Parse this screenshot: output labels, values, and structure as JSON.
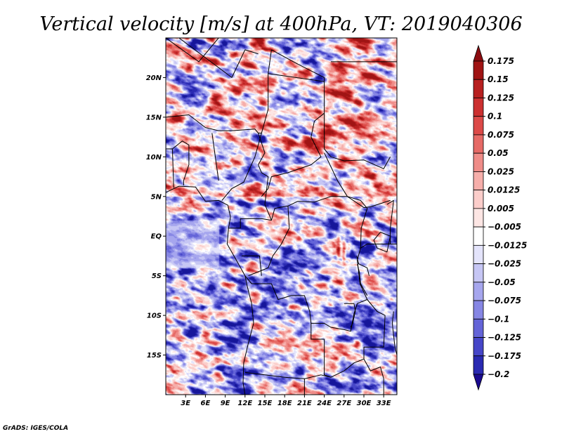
{
  "title": "Vertical velocity [m/s] at 400hPa, VT: 2019040306",
  "credit": "GrADS: IGES/COLA",
  "map": {
    "lon_range": [
      0,
      35
    ],
    "lat_range": [
      -20,
      25
    ],
    "lat_ticks": [
      {
        "value": 20,
        "label": "20N"
      },
      {
        "value": 15,
        "label": "15N"
      },
      {
        "value": 10,
        "label": "10N"
      },
      {
        "value": 5,
        "label": "5N"
      },
      {
        "value": 0,
        "label": "EQ"
      },
      {
        "value": -5,
        "label": "5S"
      },
      {
        "value": -10,
        "label": "10S"
      },
      {
        "value": -15,
        "label": "15S"
      }
    ],
    "lon_ticks": [
      {
        "value": 3,
        "label": "3E"
      },
      {
        "value": 6,
        "label": "6E"
      },
      {
        "value": 9,
        "label": "9E"
      },
      {
        "value": 12,
        "label": "12E"
      },
      {
        "value": 15,
        "label": "15E"
      },
      {
        "value": 18,
        "label": "18E"
      },
      {
        "value": 21,
        "label": "21E"
      },
      {
        "value": 24,
        "label": "24E"
      },
      {
        "value": 27,
        "label": "27E"
      },
      {
        "value": 30,
        "label": "30E"
      },
      {
        "value": 33,
        "label": "33E"
      }
    ]
  },
  "colorbar": {
    "levels": [
      {
        "label": "0.175",
        "color": "#a01414"
      },
      {
        "label": "0.15",
        "color": "#b82020"
      },
      {
        "label": "0.125",
        "color": "#cc3030"
      },
      {
        "label": "0.1",
        "color": "#dc4a48"
      },
      {
        "label": "0.075",
        "color": "#e66a66"
      },
      {
        "label": "0.05",
        "color": "#ef8c88"
      },
      {
        "label": "0.025",
        "color": "#f6aeaa"
      },
      {
        "label": "0.0125",
        "color": "#fbcdca"
      },
      {
        "label": "0.005",
        "color": "#fde6e4"
      },
      {
        "label": "−0.005",
        "color": "#ffffff"
      },
      {
        "label": "−0.0125",
        "color": "#e4e4fb"
      },
      {
        "label": "−0.025",
        "color": "#c6c6f4"
      },
      {
        "label": "−0.05",
        "color": "#a6a6ee"
      },
      {
        "label": "−0.075",
        "color": "#8686e4"
      },
      {
        "label": "−0.1",
        "color": "#6464d8"
      },
      {
        "label": "−0.125",
        "color": "#4646c8"
      },
      {
        "label": "−0.175",
        "color": "#2a2ab2"
      },
      {
        "label": "−0.2",
        "color": "#16169a"
      }
    ],
    "top_extend_color": "#8c0c10",
    "bottom_extend_color": "#1a0a90"
  }
}
